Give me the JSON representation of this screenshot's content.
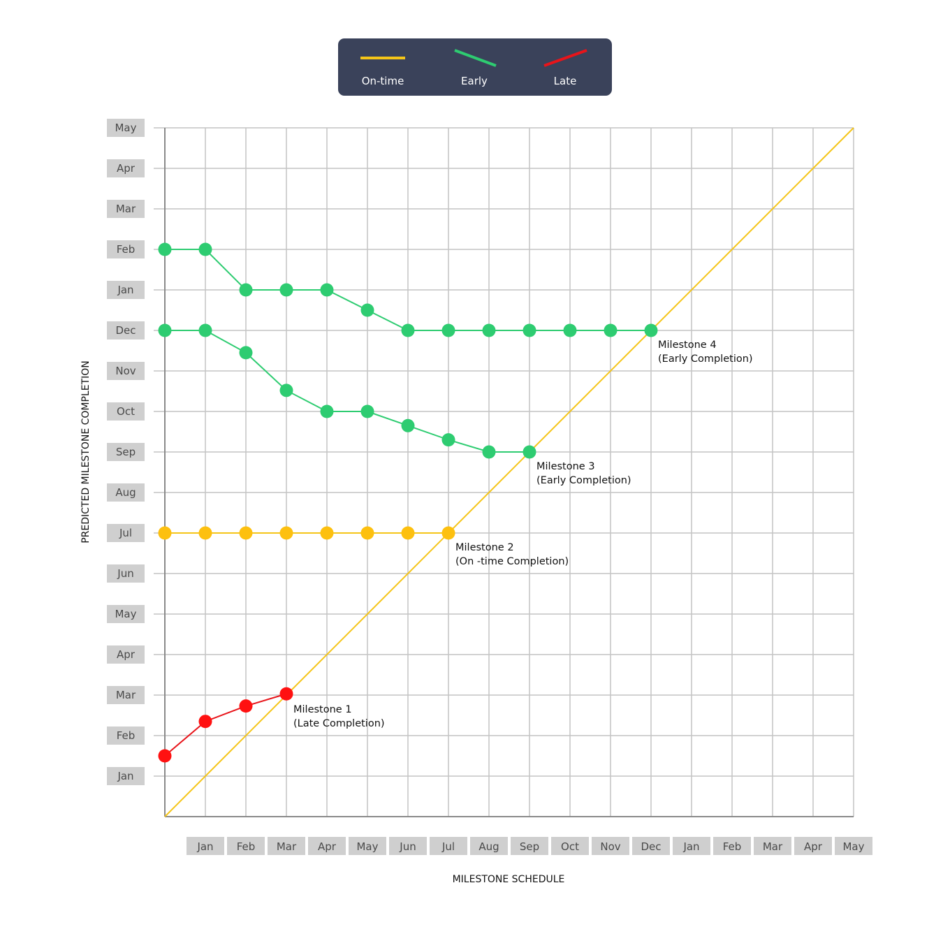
{
  "chart_data": {
    "type": "line",
    "title": "",
    "xlabel": "MILESTONE SCHEDULE",
    "ylabel": "PREDICTED MILESTONE COMPLETION",
    "x_ticks": [
      "Jan",
      "Feb",
      "Mar",
      "Apr",
      "May",
      "Jun",
      "Jul",
      "Aug",
      "Sep",
      "Oct",
      "Nov",
      "Dec",
      "Jan",
      "Feb",
      "Mar",
      "Apr",
      "May"
    ],
    "y_ticks": [
      "Jan",
      "Feb",
      "Mar",
      "Apr",
      "May",
      "Jun",
      "Jul",
      "Aug",
      "Sep",
      "Oct",
      "Nov",
      "Dec",
      "Jan",
      "Feb",
      "Mar",
      "Apr",
      "May"
    ],
    "x_range": [
      0,
      17
    ],
    "y_range": [
      0,
      17
    ],
    "grid": true,
    "legend_position": "top-center",
    "legend": [
      {
        "label": "On-time",
        "color": "#f5c518"
      },
      {
        "label": "Early",
        "color": "#2ecc71"
      },
      {
        "label": "Late",
        "color": "#e8141a"
      }
    ],
    "reference_line": {
      "color": "#f5c518",
      "from": [
        0,
        0
      ],
      "to": [
        17,
        17
      ]
    },
    "series": [
      {
        "legend": "Late",
        "color": "#ff1111",
        "line_color": "#e8141a",
        "x": [
          0,
          1,
          2,
          3
        ],
        "y": [
          1.5,
          2.35,
          2.73,
          3.03
        ]
      },
      {
        "legend": "On-time",
        "color": "#fdc00f",
        "line_color": "#f5c518",
        "x": [
          0,
          1,
          2,
          3,
          4,
          5,
          6,
          7
        ],
        "y": [
          7,
          7,
          7,
          7,
          7,
          7,
          7,
          7
        ]
      },
      {
        "legend": "Early",
        "color": "#2ecc71",
        "line_color": "#2ecc71",
        "x": [
          0,
          1,
          2,
          3,
          4,
          5,
          6,
          7,
          8,
          9
        ],
        "y": [
          12,
          12,
          11.45,
          10.52,
          10,
          10,
          9.65,
          9.3,
          9,
          9
        ]
      },
      {
        "legend": "Early",
        "color": "#2ecc71",
        "line_color": "#2ecc71",
        "x": [
          0,
          1,
          2,
          3,
          4,
          5,
          6,
          7,
          8,
          9,
          10,
          11,
          12
        ],
        "y": [
          14,
          14,
          13,
          13,
          13,
          12.5,
          12,
          12,
          12,
          12,
          12,
          12,
          12
        ]
      }
    ],
    "annotations": [
      {
        "x": 3,
        "y": 3,
        "lines": [
          "Milestone 1",
          "(Late Completion)"
        ]
      },
      {
        "x": 7,
        "y": 7,
        "lines": [
          "Milestone 2",
          "(On -time Completion)"
        ]
      },
      {
        "x": 9,
        "y": 9,
        "lines": [
          "Milestone 3",
          "(Early Completion)"
        ]
      },
      {
        "x": 12,
        "y": 12,
        "lines": [
          "Milestone 4",
          "(Early Completion)"
        ]
      }
    ]
  }
}
